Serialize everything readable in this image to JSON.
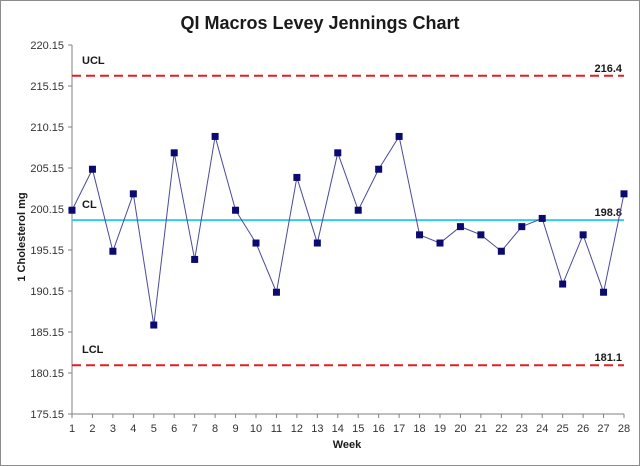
{
  "chart_data": {
    "type": "line",
    "title": "QI Macros Levey Jennings Chart",
    "xlabel": "Week",
    "ylabel": "1 Cholesterol mg",
    "xlim": [
      1,
      28
    ],
    "ylim": [
      175.15,
      220.15
    ],
    "y_ticks": [
      "175.15",
      "180.15",
      "185.15",
      "190.15",
      "195.15",
      "200.15",
      "205.15",
      "210.15",
      "215.15",
      "220.15"
    ],
    "x": [
      1,
      2,
      3,
      4,
      5,
      6,
      7,
      8,
      9,
      10,
      11,
      12,
      13,
      14,
      15,
      16,
      17,
      18,
      19,
      20,
      21,
      22,
      23,
      24,
      25,
      26,
      27,
      28
    ],
    "x_tick_labels": [
      "1",
      "2",
      "3",
      "4",
      "5",
      "6",
      "7",
      "8",
      "9",
      "10",
      "11",
      "12",
      "13",
      "14",
      "15",
      "16",
      "17",
      "18",
      "19",
      "20",
      "21",
      "22",
      "23",
      "24",
      "25",
      "26",
      "27",
      "28"
    ],
    "series": [
      {
        "name": "Cholesterol",
        "color": "#4a4a9a",
        "marker_color": "#0a0a70",
        "values": [
          200,
          205,
          195,
          202,
          186,
          207,
          194,
          209,
          200,
          196,
          190,
          204,
          196,
          207,
          200,
          205,
          209,
          197,
          196,
          198,
          197,
          195,
          198,
          199,
          191,
          197,
          190,
          202
        ]
      }
    ],
    "control_lines": [
      {
        "key": "ucl",
        "name": "UCL",
        "value": 216.4,
        "value_label": "216.4",
        "color": "#e02020",
        "style": "dashed"
      },
      {
        "key": "cl",
        "name": "CL",
        "value": 198.8,
        "value_label": "198.8",
        "color": "#33ccee",
        "style": "solid"
      },
      {
        "key": "lcl",
        "name": "LCL",
        "value": 181.1,
        "value_label": "181.1",
        "color": "#e02020",
        "style": "dashed"
      }
    ],
    "grid": false,
    "legend": "none"
  }
}
